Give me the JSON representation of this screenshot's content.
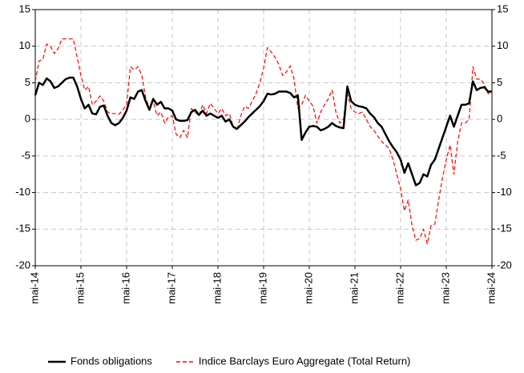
{
  "chart_data": {
    "type": "line",
    "categories": [
      "mai-14",
      null,
      null,
      null,
      null,
      null,
      null,
      null,
      null,
      null,
      null,
      null,
      "mai-15",
      null,
      null,
      null,
      null,
      null,
      null,
      null,
      null,
      null,
      null,
      null,
      "mai-16",
      null,
      null,
      null,
      null,
      null,
      null,
      null,
      null,
      null,
      null,
      null,
      "mai-17",
      null,
      null,
      null,
      null,
      null,
      null,
      null,
      null,
      null,
      null,
      null,
      "mai-18",
      null,
      null,
      null,
      null,
      null,
      null,
      null,
      null,
      null,
      null,
      null,
      "mai-19",
      null,
      null,
      null,
      null,
      null,
      null,
      null,
      null,
      null,
      null,
      null,
      "mai-20",
      null,
      null,
      null,
      null,
      null,
      null,
      null,
      null,
      null,
      null,
      null,
      "mai-21",
      null,
      null,
      null,
      null,
      null,
      null,
      null,
      null,
      null,
      null,
      null,
      "mai-22",
      null,
      null,
      null,
      null,
      null,
      null,
      null,
      null,
      null,
      null,
      null,
      "mai-23",
      null,
      null,
      null,
      null,
      null,
      null,
      null,
      null,
      null,
      null,
      null,
      "mai-24"
    ],
    "series": [
      {
        "name": "Fonds obligations",
        "color": "#000000",
        "dash": false,
        "values": [
          3.3,
          5.0,
          4.7,
          5.6,
          5.2,
          4.3,
          4.5,
          5.0,
          5.5,
          5.7,
          5.7,
          4.5,
          2.8,
          1.5,
          2.0,
          0.8,
          0.7,
          1.7,
          1.9,
          0.5,
          -0.5,
          -0.8,
          -0.5,
          0.2,
          1.2,
          3.0,
          2.8,
          3.8,
          4.0,
          2.5,
          1.3,
          2.8,
          2.0,
          2.4,
          1.5,
          1.5,
          1.2,
          0.0,
          -0.2,
          -0.2,
          -0.1,
          1.0,
          1.3,
          0.6,
          1.2,
          0.5,
          0.8,
          0.5,
          0.2,
          0.5,
          -0.3,
          0.0,
          -1.0,
          -1.3,
          -0.8,
          -0.3,
          0.3,
          0.8,
          1.3,
          1.8,
          2.5,
          3.5,
          3.4,
          3.5,
          3.8,
          3.8,
          3.8,
          3.6,
          3.0,
          3.3,
          -2.8,
          -1.8,
          -1.0,
          -0.9,
          -1.0,
          -1.5,
          -1.3,
          -1.0,
          -0.5,
          -0.9,
          -1.1,
          -1.2,
          4.5,
          2.5,
          2.0,
          1.8,
          1.7,
          1.5,
          0.8,
          0.3,
          -0.5,
          -1.0,
          -2.0,
          -3.0,
          -3.8,
          -4.5,
          -5.5,
          -7.3,
          -6.0,
          -7.5,
          -9.0,
          -8.7,
          -7.5,
          -7.8,
          -6.2,
          -5.5,
          -4.0,
          -2.5,
          -1.0,
          0.5,
          -1.0,
          0.5,
          2.0,
          2.0,
          2.2,
          5.2,
          4.0,
          4.3,
          4.4,
          3.8,
          3.8
        ]
      },
      {
        "name": "Indice Barclays Euro Aggregate (Total Return)",
        "color": "#ff0000",
        "dash": true,
        "values": [
          5.2,
          8.0,
          8.2,
          10.3,
          10.0,
          9.0,
          9.7,
          11.0,
          11.0,
          11.0,
          11.0,
          8.5,
          6.0,
          4.0,
          4.5,
          2.0,
          2.5,
          3.2,
          2.5,
          1.0,
          0.8,
          0.8,
          0.7,
          1.3,
          2.0,
          7.2,
          6.8,
          7.2,
          6.0,
          3.0,
          1.5,
          2.5,
          0.5,
          1.0,
          -0.5,
          0.3,
          0.5,
          -2.0,
          -2.5,
          -1.5,
          -2.5,
          1.5,
          1.0,
          0.5,
          2.0,
          0.8,
          2.2,
          1.5,
          0.8,
          1.5,
          0.5,
          0.8,
          -1.0,
          -1.5,
          0.5,
          1.8,
          1.5,
          2.5,
          3.5,
          5.0,
          7.0,
          9.8,
          9.2,
          8.5,
          7.5,
          6.0,
          6.5,
          7.3,
          5.5,
          1.5,
          2.0,
          3.3,
          2.5,
          1.8,
          -0.5,
          1.0,
          2.0,
          2.8,
          4.0,
          1.0,
          -0.5,
          0.0,
          3.5,
          1.5,
          1.0,
          0.8,
          1.0,
          0.0,
          -1.0,
          -1.5,
          -2.3,
          -3.0,
          -3.5,
          -4.0,
          -5.5,
          -7.5,
          -9.5,
          -12.5,
          -11.0,
          -14.5,
          -16.5,
          -16.3,
          -15.0,
          -17.0,
          -14.5,
          -14.3,
          -11.0,
          -8.0,
          -5.5,
          -3.5,
          -7.5,
          -3.0,
          -0.5,
          -0.5,
          0.0,
          7.2,
          5.5,
          5.5,
          4.8,
          3.5,
          3.8
        ]
      }
    ],
    "ylim": [
      -20,
      15
    ],
    "yticks": [
      -20,
      -15,
      -10,
      -5,
      0,
      5,
      10,
      15
    ],
    "y2lim": [
      -20,
      15
    ],
    "y2ticks": [
      -20,
      -15,
      -10,
      -5,
      0,
      5,
      10,
      15
    ],
    "grid": true,
    "legend": "bottom"
  }
}
